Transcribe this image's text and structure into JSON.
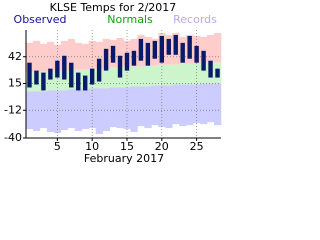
{
  "chart_data": {
    "type": "range-bar",
    "title": "KLSE Temps for 2/2017",
    "x_label": "February 2017",
    "x": [
      1,
      2,
      3,
      4,
      5,
      6,
      7,
      8,
      9,
      10,
      11,
      12,
      13,
      14,
      15,
      16,
      17,
      18,
      19,
      20,
      21,
      22,
      23,
      24,
      25,
      26,
      27,
      28
    ],
    "xlim": [
      0.5,
      28.5
    ],
    "xticks": [
      5,
      10,
      15,
      20,
      25
    ],
    "ylim": [
      -40,
      69
    ],
    "yticks": [
      42,
      15,
      -12,
      -40
    ],
    "grid": true,
    "series": [
      {
        "name": "Observed",
        "color": "#0a1a6a",
        "legend_color": "#1010a0",
        "high": [
          36,
          28,
          26,
          30,
          38,
          43,
          36,
          26,
          23,
          30,
          40,
          50,
          53,
          43,
          46,
          48,
          60,
          56,
          58,
          63,
          60,
          64,
          56,
          63,
          53,
          48,
          38,
          30
        ],
        "low": [
          11,
          14,
          8,
          19,
          21,
          19,
          11,
          8,
          8,
          14,
          17,
          28,
          36,
          21,
          28,
          33,
          38,
          33,
          40,
          36,
          44,
          44,
          36,
          40,
          36,
          28,
          21,
          21
        ]
      },
      {
        "name": "Normals",
        "color": "#ccf5cc",
        "legend_color": "#10a010",
        "high": [
          26,
          26,
          27,
          27,
          28,
          28,
          28,
          29,
          29,
          30,
          30,
          30,
          31,
          31,
          32,
          32,
          32,
          33,
          33,
          34,
          34,
          34,
          35,
          35,
          35,
          36,
          36,
          36
        ],
        "low": [
          7,
          7,
          7,
          8,
          8,
          8,
          9,
          9,
          9,
          10,
          10,
          10,
          11,
          11,
          11,
          12,
          12,
          12,
          13,
          13,
          13,
          14,
          14,
          14,
          14,
          15,
          15,
          15
        ]
      },
      {
        "name": "Records",
        "legend_color": "#c0a8e8",
        "high_color": "#ffcccc",
        "low_color": "#ccccff",
        "high": [
          56,
          58,
          55,
          57,
          54,
          58,
          60,
          56,
          55,
          58,
          57,
          60,
          59,
          61,
          58,
          60,
          64,
          62,
          60,
          66,
          64,
          66,
          62,
          64,
          63,
          62,
          64,
          66
        ],
        "low": [
          -31,
          -33,
          -30,
          -34,
          -35,
          -32,
          -30,
          -33,
          -31,
          -30,
          -36,
          -33,
          -29,
          -30,
          -31,
          -34,
          -28,
          -30,
          -27,
          -29,
          -30,
          -26,
          -28,
          -27,
          -25,
          -26,
          -24,
          -27
        ]
      }
    ]
  }
}
